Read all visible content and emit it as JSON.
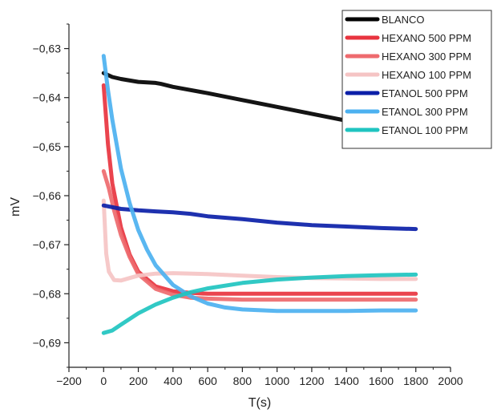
{
  "chart_data": {
    "type": "line",
    "xlabel": "T(s)",
    "ylabel": "mV",
    "xlim": [
      -200,
      2000
    ],
    "ylim": [
      -0.695,
      -0.625
    ],
    "x_ticks": [
      -200,
      0,
      200,
      400,
      600,
      800,
      1000,
      1200,
      1400,
      1600,
      1800,
      2000
    ],
    "x_tick_labels": [
      "−200",
      "0",
      "200",
      "400",
      "600",
      "800",
      "1000",
      "1200",
      "1400",
      "1600",
      "1800",
      "2000"
    ],
    "y_ticks": [
      -0.63,
      -0.64,
      -0.65,
      -0.66,
      -0.67,
      -0.68,
      -0.69
    ],
    "y_tick_labels": [
      "−0,63",
      "−0,64",
      "−0,65",
      "−0,66",
      "−0,67",
      "−0,68",
      "−0,69"
    ],
    "grid": false,
    "legend_position": "top-right",
    "series": [
      {
        "name": "BLANCO",
        "color": "#000000",
        "x": [
          0,
          50,
          100,
          200,
          300,
          330,
          400,
          600,
          800,
          1000,
          1200,
          1400,
          1600,
          1800
        ],
        "y": [
          -0.635,
          -0.6358,
          -0.6362,
          -0.6368,
          -0.637,
          -0.6372,
          -0.6378,
          -0.6391,
          -0.6405,
          -0.6419,
          -0.6433,
          -0.6447,
          -0.6454,
          -0.6465
        ]
      },
      {
        "name": "HEXANO 500 PPM",
        "color": "#e8343f",
        "x": [
          0,
          25,
          50,
          100,
          150,
          200,
          300,
          400,
          500,
          600,
          800,
          1000,
          1200,
          1400,
          1600,
          1800
        ],
        "y": [
          -0.6375,
          -0.6495,
          -0.6575,
          -0.6665,
          -0.672,
          -0.6755,
          -0.6785,
          -0.6795,
          -0.6798,
          -0.68,
          -0.68,
          -0.68,
          -0.68,
          -0.68,
          -0.68,
          -0.68
        ]
      },
      {
        "name": "HEXANO 300 PPM",
        "color": "#ee6a6e",
        "x": [
          0,
          30,
          60,
          100,
          150,
          200,
          300,
          400,
          500,
          600,
          800,
          1000,
          1200,
          1400,
          1600,
          1800
        ],
        "y": [
          -0.655,
          -0.6585,
          -0.663,
          -0.668,
          -0.6725,
          -0.676,
          -0.679,
          -0.6802,
          -0.6808,
          -0.681,
          -0.6812,
          -0.6812,
          -0.6812,
          -0.6812,
          -0.6812,
          -0.6812
        ]
      },
      {
        "name": "HEXANO 100 PPM",
        "color": "#f5c4c4",
        "x": [
          0,
          15,
          30,
          60,
          100,
          150,
          200,
          300,
          400,
          600,
          800,
          1000,
          1200,
          1400,
          1600,
          1800
        ],
        "y": [
          -0.661,
          -0.6718,
          -0.6755,
          -0.6772,
          -0.6773,
          -0.6768,
          -0.6763,
          -0.6759,
          -0.6758,
          -0.676,
          -0.6763,
          -0.6766,
          -0.6768,
          -0.6769,
          -0.677,
          -0.677
        ]
      },
      {
        "name": "ETANOL 500 PPM",
        "color": "#0b1fa8",
        "x": [
          0,
          100,
          200,
          300,
          400,
          500,
          600,
          800,
          1000,
          1200,
          1400,
          1600,
          1800
        ],
        "y": [
          -0.662,
          -0.6627,
          -0.663,
          -0.6632,
          -0.6634,
          -0.6637,
          -0.6642,
          -0.6648,
          -0.6655,
          -0.666,
          -0.6663,
          -0.6666,
          -0.6668
        ]
      },
      {
        "name": "ETANOL 300 PPM",
        "color": "#4cb1f0",
        "x": [
          0,
          25,
          50,
          100,
          150,
          200,
          250,
          300,
          400,
          500,
          600,
          700,
          800,
          1000,
          1200,
          1400,
          1600,
          1800
        ],
        "y": [
          -0.6315,
          -0.6385,
          -0.6445,
          -0.6545,
          -0.6615,
          -0.667,
          -0.671,
          -0.6742,
          -0.6782,
          -0.6805,
          -0.682,
          -0.6828,
          -0.6832,
          -0.6835,
          -0.6835,
          -0.6835,
          -0.6834,
          -0.6834
        ]
      },
      {
        "name": "ETANOL 100 PPM",
        "color": "#1fc4c0",
        "x": [
          0,
          50,
          100,
          200,
          300,
          400,
          500,
          600,
          800,
          1000,
          1200,
          1400,
          1600,
          1800
        ],
        "y": [
          -0.688,
          -0.6875,
          -0.6863,
          -0.684,
          -0.6822,
          -0.6808,
          -0.6797,
          -0.6789,
          -0.6778,
          -0.6771,
          -0.6767,
          -0.6764,
          -0.6762,
          -0.6761
        ]
      }
    ]
  }
}
